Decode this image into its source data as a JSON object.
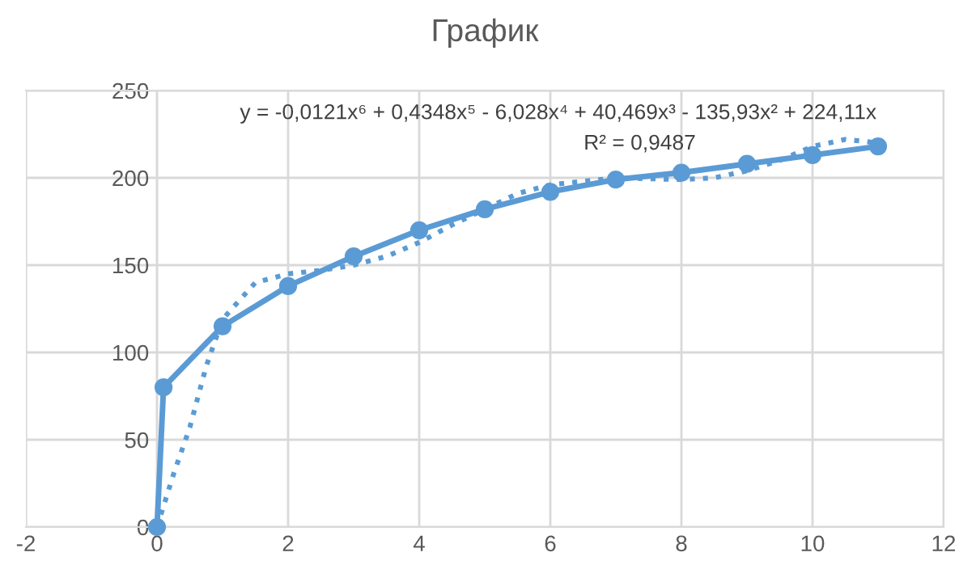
{
  "chart_data": {
    "type": "line",
    "title": "График",
    "xlim": [
      -2,
      12
    ],
    "xticks": [
      -2,
      0,
      2,
      4,
      6,
      8,
      10,
      12
    ],
    "ylim": [
      0,
      250
    ],
    "yticks": [
      0,
      50,
      100,
      150,
      200,
      250
    ],
    "grid": true,
    "legend": false,
    "series": [
      {
        "color": "#5b9bd5",
        "marker": "circle",
        "line_style": "solid",
        "x": [
          0,
          0.1,
          1,
          2,
          3,
          4,
          5,
          6,
          7,
          8,
          9,
          10,
          11
        ],
        "values": [
          0,
          80,
          115,
          138,
          155,
          170,
          182,
          192,
          199,
          203,
          208,
          213,
          218
        ]
      },
      {
        "color": "#5b9bd5",
        "marker": "none",
        "line_style": "dotted",
        "x": [
          0,
          0.25,
          0.5,
          0.75,
          1,
          1.5,
          2,
          2.5,
          3,
          3.5,
          4,
          4.5,
          5,
          5.5,
          6,
          7,
          8,
          8.5,
          9,
          9.5,
          10,
          10.5,
          11
        ],
        "values": [
          0,
          30,
          57,
          92,
          119,
          140,
          145,
          147,
          150,
          155,
          163,
          173,
          182,
          191,
          196,
          200,
          199,
          200,
          204,
          210,
          218,
          222,
          220
        ]
      }
    ],
    "annotations": [
      "y = -0,0121x⁶ + 0,4348x⁵ - 6,028x⁴ + 40,469x³ - 135,93x² + 224,11x",
      "R² = 0,9487"
    ]
  }
}
